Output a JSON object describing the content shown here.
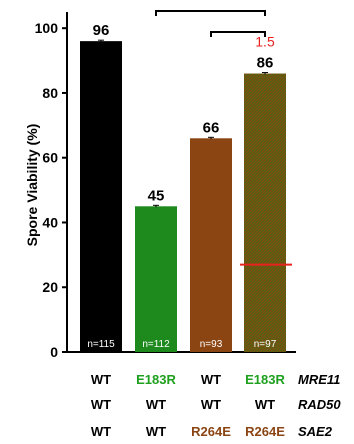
{
  "colors": {
    "wt": "#000000",
    "mre11_e183r": "#1e8a1e",
    "sae2_r264e": "#8b4513",
    "double": "#5a6e14",
    "green_text": "#1ea01e",
    "brown_text": "#8b4513",
    "annotation_red": "#e8231f"
  },
  "chart_data": {
    "type": "bar",
    "ylabel": "Spore Viability (%)",
    "ylim": [
      0,
      105
    ],
    "yticks": [
      "0",
      "20",
      "40",
      "60",
      "80",
      "100"
    ],
    "values": [
      96,
      45,
      66,
      86
    ],
    "value_labels": [
      "96",
      "45",
      "66",
      "86"
    ],
    "n_labels": [
      "n=115",
      "n=112",
      "n=93",
      "n=97"
    ],
    "error": [
      0.3,
      0.3,
      0.3,
      0.3
    ],
    "colors": [
      "#000000",
      "#1e8a1e",
      "#8b4513",
      "#5a6e14"
    ],
    "expected_line": {
      "value": 27,
      "bar_index": 3
    },
    "annotation": {
      "text": "1.5",
      "bar_index": 3
    },
    "significance_brackets": [
      {
        "from": 1,
        "to": 3
      },
      {
        "from": 2,
        "to": 3
      }
    ]
  },
  "genotype_rows": [
    {
      "gene": "MRE11",
      "cells": [
        {
          "text": "WT",
          "color": "#000000"
        },
        {
          "text": "E183R",
          "color": "#1ea01e"
        },
        {
          "text": "WT",
          "color": "#000000"
        },
        {
          "text": "E183R",
          "color": "#1ea01e"
        }
      ]
    },
    {
      "gene": "RAD50",
      "cells": [
        {
          "text": "WT",
          "color": "#000000"
        },
        {
          "text": "WT",
          "color": "#000000"
        },
        {
          "text": "WT",
          "color": "#000000"
        },
        {
          "text": "WT",
          "color": "#000000"
        }
      ]
    },
    {
      "gene": "SAE2",
      "cells": [
        {
          "text": "WT",
          "color": "#000000"
        },
        {
          "text": "WT",
          "color": "#000000"
        },
        {
          "text": "R264E",
          "color": "#8b4513"
        },
        {
          "text": "R264E",
          "color": "#8b4513"
        }
      ]
    }
  ]
}
